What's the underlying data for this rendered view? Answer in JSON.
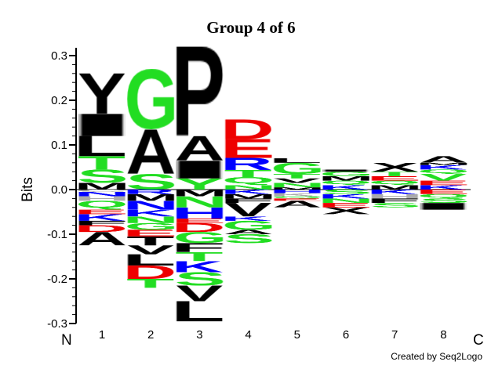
{
  "chart_data": {
    "type": "sequence-logo",
    "title": "Group 4 of 6",
    "ylabel": "Bits",
    "ylim": [
      -0.3,
      0.3
    ],
    "yticks": [
      -0.3,
      -0.2,
      -0.1,
      0.0,
      0.1,
      0.2,
      0.3
    ],
    "ytick_labels": [
      "-0.3",
      "-0.2",
      "-0.1",
      "0.0",
      "0.1",
      "0.2",
      "0.3"
    ],
    "n_label": "N",
    "c_label": "C",
    "credit": "Created by Seq2Logo",
    "colors": {
      "k": "#000000",
      "g": "#22dd22",
      "b": "#0000ff",
      "r": "#ee0000",
      "s": "#aaaaaa"
    },
    "positions": [
      {
        "label": "1",
        "pos": [
          [
            "M",
            0.015,
            "k"
          ],
          [
            "S",
            0.03,
            "g"
          ],
          [
            "T",
            0.03,
            "g"
          ],
          [
            "L",
            0.045,
            "k"
          ],
          [
            "I",
            0.05,
            "k"
          ],
          [
            "Y",
            0.09,
            "k"
          ]
        ],
        "neg": [
          [
            "C",
            0.005,
            "s"
          ],
          [
            "N",
            0.01,
            "b"
          ],
          [
            "H",
            0.01,
            "s"
          ],
          [
            "Q",
            0.02,
            "g"
          ],
          [
            "E",
            0.01,
            "r"
          ],
          [
            "K",
            0.015,
            "b"
          ],
          [
            "F",
            0.01,
            "k"
          ],
          [
            "D",
            0.015,
            "r"
          ],
          [
            "A",
            0.03,
            "k"
          ]
        ]
      },
      {
        "label": "2",
        "pos": [
          [
            "S",
            0.035,
            "g"
          ],
          [
            "A",
            0.1,
            "k"
          ],
          [
            "G",
            0.135,
            "g"
          ]
        ],
        "neg": [
          [
            "R",
            0.01,
            "b"
          ],
          [
            "M",
            0.015,
            "k"
          ],
          [
            "N",
            0.02,
            "b"
          ],
          [
            "K",
            0.015,
            "b"
          ],
          [
            "N",
            0.015,
            "g"
          ],
          [
            "G",
            0.015,
            "g"
          ],
          [
            "E",
            0.015,
            "r"
          ],
          [
            "T",
            0.02,
            "k"
          ],
          [
            "V",
            0.02,
            "k"
          ],
          [
            "L",
            0.025,
            "k"
          ],
          [
            "D",
            0.03,
            "r"
          ],
          [
            "T",
            0.02,
            "g"
          ]
        ]
      },
      {
        "label": "3",
        "pos": [
          [
            "Y",
            0.025,
            "g"
          ],
          [
            "I",
            0.04,
            "k"
          ],
          [
            "A",
            0.055,
            "k"
          ],
          [
            "P",
            0.2,
            "k"
          ]
        ],
        "neg": [
          [
            "M",
            0.015,
            "k"
          ],
          [
            "N",
            0.025,
            "g"
          ],
          [
            "H",
            0.025,
            "b"
          ],
          [
            "E",
            0.01,
            "r"
          ],
          [
            "D",
            0.02,
            "r"
          ],
          [
            "G",
            0.025,
            "g"
          ],
          [
            "F",
            0.02,
            "k"
          ],
          [
            "T",
            0.02,
            "g"
          ],
          [
            "K",
            0.025,
            "b"
          ],
          [
            "S",
            0.03,
            "g"
          ],
          [
            "V",
            0.035,
            "k"
          ],
          [
            "L",
            0.045,
            "k"
          ]
        ]
      },
      {
        "label": "4",
        "pos": [
          [
            "N",
            0.01,
            "g"
          ],
          [
            "Q",
            0.018,
            "g"
          ],
          [
            "T",
            0.016,
            "g"
          ],
          [
            "R",
            0.027,
            "b"
          ],
          [
            "E",
            0.042,
            "r"
          ],
          [
            "D",
            0.044,
            "r"
          ]
        ],
        "neg": [
          [
            "K",
            0.01,
            "b"
          ],
          [
            "M",
            0.01,
            "k"
          ],
          [
            "F",
            0.01,
            "k"
          ],
          [
            "V",
            0.03,
            "k"
          ],
          [
            "K",
            0.01,
            "b"
          ],
          [
            "G",
            0.02,
            "g"
          ],
          [
            "A",
            0.01,
            "k"
          ],
          [
            "S",
            0.02,
            "g"
          ]
        ]
      },
      {
        "label": "5",
        "pos": [
          [
            "M",
            0.005,
            "k"
          ],
          [
            "N",
            0.01,
            "g"
          ],
          [
            "V",
            0.01,
            "k"
          ],
          [
            "T",
            0.01,
            "g"
          ],
          [
            "G",
            0.025,
            "g"
          ],
          [
            "L",
            0.01,
            "k"
          ]
        ],
        "neg": [
          [
            "H",
            0.008,
            "b"
          ],
          [
            "K",
            0.007,
            "s"
          ],
          [
            "Q",
            0.005,
            "g"
          ],
          [
            "E",
            0.005,
            "r"
          ],
          [
            "A",
            0.015,
            "k"
          ]
        ]
      },
      {
        "label": "6",
        "pos": [
          [
            "K",
            0.01,
            "b"
          ],
          [
            "Q",
            0.01,
            "g"
          ],
          [
            "M",
            0.01,
            "k"
          ],
          [
            "G",
            0.01,
            "g"
          ],
          [
            "I",
            0.005,
            "k"
          ]
        ],
        "neg": [
          [
            "S",
            0.01,
            "g"
          ],
          [
            "K",
            0.01,
            "b"
          ],
          [
            "N",
            0.01,
            "g"
          ],
          [
            "E",
            0.01,
            "r"
          ],
          [
            "X",
            0.015,
            "k"
          ]
        ]
      },
      {
        "label": "7",
        "pos": [
          [
            "M",
            0.01,
            "k"
          ],
          [
            "Q",
            0.01,
            "g"
          ],
          [
            "E",
            0.01,
            "r"
          ],
          [
            "T",
            0.01,
            "g"
          ],
          [
            "X",
            0.02,
            "k"
          ]
        ],
        "neg": [
          [
            "K",
            0.01,
            "b"
          ],
          [
            "H",
            0.01,
            "s"
          ],
          [
            "F",
            0.01,
            "k"
          ],
          [
            "S",
            0.01,
            "g"
          ]
        ]
      },
      {
        "label": "8",
        "pos": [
          [
            "K",
            0.01,
            "b"
          ],
          [
            "E",
            0.01,
            "r"
          ],
          [
            "V",
            0.015,
            "g"
          ],
          [
            "Q",
            0.01,
            "g"
          ],
          [
            "K",
            0.01,
            "b"
          ],
          [
            "M",
            0.005,
            "k"
          ],
          [
            "A",
            0.015,
            "k"
          ]
        ],
        "neg": [
          [
            "E",
            0.01,
            "r"
          ],
          [
            "Q",
            0.01,
            "g"
          ],
          [
            "S",
            0.01,
            "g"
          ],
          [
            "I",
            0.015,
            "k"
          ]
        ]
      }
    ]
  }
}
